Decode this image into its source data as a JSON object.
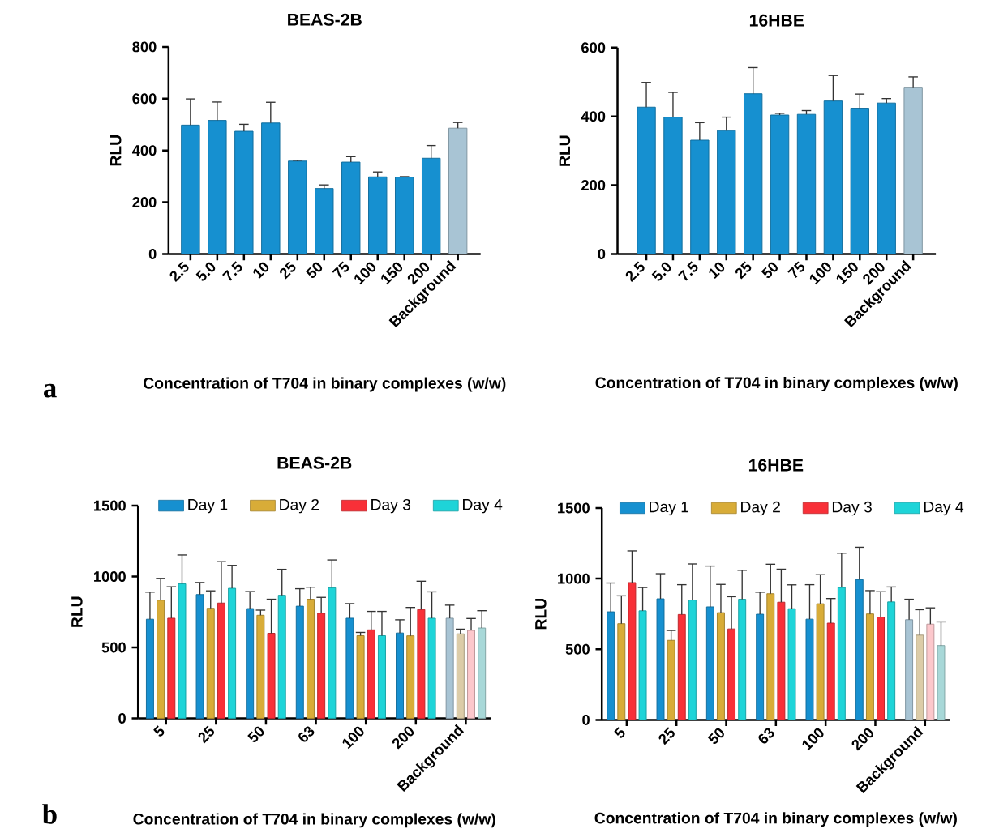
{
  "chart_data": [
    {
      "type": "bar",
      "title": "BEAS-2B",
      "xlabel": "Concentration of T704 in binary complexes (w/w)",
      "ylabel": "RLU",
      "annotations": [
        "a"
      ],
      "categories": [
        "2.5",
        "5.0",
        "7.5",
        "10",
        "25",
        "50",
        "75",
        "100",
        "150",
        "200",
        "Background"
      ],
      "values": [
        498,
        516,
        474,
        506,
        359,
        253,
        355,
        298,
        297,
        370,
        486
      ],
      "errors": [
        101,
        71,
        27,
        80,
        3,
        14,
        21,
        19,
        2,
        49,
        22
      ],
      "colors": [
        "#1690d0",
        "#1690d0",
        "#1690d0",
        "#1690d0",
        "#1690d0",
        "#1690d0",
        "#1690d0",
        "#1690d0",
        "#1690d0",
        "#1690d0",
        "#a8c4d4"
      ],
      "ylim": [
        0,
        800
      ],
      "yticks": [
        0,
        200,
        400,
        600,
        800
      ]
    },
    {
      "type": "bar",
      "title": "16HBE",
      "xlabel": "Concentration of T704 in binary complexes (w/w)",
      "ylabel": "RLU",
      "categories": [
        "2.5",
        "5.0",
        "7.5",
        "10",
        "25",
        "50",
        "75",
        "100",
        "150",
        "200",
        "Background"
      ],
      "values": [
        427,
        398,
        331,
        359,
        466,
        404,
        406,
        445,
        424,
        439,
        485
      ],
      "errors": [
        72,
        72,
        51,
        39,
        76,
        5,
        11,
        74,
        41,
        13,
        30
      ],
      "colors": [
        "#1690d0",
        "#1690d0",
        "#1690d0",
        "#1690d0",
        "#1690d0",
        "#1690d0",
        "#1690d0",
        "#1690d0",
        "#1690d0",
        "#1690d0",
        "#a8c4d4"
      ],
      "ylim": [
        0,
        600
      ],
      "yticks": [
        0,
        200,
        400,
        600
      ]
    },
    {
      "type": "bar",
      "title": "BEAS-2B",
      "xlabel": "Concentration of T704 in binary complexes (w/w)",
      "ylabel": "RLU",
      "annotations": [
        "b"
      ],
      "legend": "top",
      "categories": [
        "5",
        "25",
        "50",
        "63",
        "100",
        "200",
        "Background"
      ],
      "series": [
        {
          "name": "Day 1",
          "color": "#1690d0",
          "colors": [
            "#1690d0",
            "#1690d0",
            "#1690d0",
            "#1690d0",
            "#1690d0",
            "#1690d0",
            "#a8c4d4"
          ],
          "values": [
            699,
            873,
            774,
            791,
            706,
            602,
            706
          ],
          "errors": [
            191,
            85,
            120,
            123,
            103,
            93,
            92
          ]
        },
        {
          "name": "Day 2",
          "color": "#d8ac38",
          "colors": [
            "#d8ac38",
            "#d8ac38",
            "#d8ac38",
            "#d8ac38",
            "#d8ac38",
            "#d8ac38",
            "#dccca8"
          ],
          "values": [
            833,
            776,
            727,
            840,
            583,
            582,
            596
          ],
          "errors": [
            154,
            123,
            36,
            85,
            23,
            200,
            33
          ]
        },
        {
          "name": "Day 3",
          "color": "#f83038",
          "colors": [
            "#f83038",
            "#f83038",
            "#f83038",
            "#f83038",
            "#f83038",
            "#f83038",
            "#fcc8cc"
          ],
          "values": [
            706,
            813,
            600,
            741,
            624,
            767,
            620
          ],
          "errors": [
            222,
            292,
            240,
            112,
            130,
            200,
            84
          ]
        },
        {
          "name": "Day 4",
          "color": "#1ed4d8",
          "colors": [
            "#1ed4d8",
            "#1ed4d8",
            "#1ed4d8",
            "#1ed4d8",
            "#1ed4d8",
            "#1ed4d8",
            "#a8d8d8"
          ],
          "values": [
            949,
            917,
            868,
            921,
            583,
            706,
            637
          ],
          "errors": [
            203,
            162,
            183,
            196,
            171,
            186,
            122
          ]
        }
      ],
      "ylim": [
        0,
        1500
      ],
      "yticks": [
        0,
        500,
        1000,
        1500
      ]
    },
    {
      "type": "bar",
      "title": "16HBE",
      "xlabel": "Concentration of T704 in binary complexes (w/w)",
      "ylabel": "RLU",
      "legend": "top",
      "categories": [
        "5",
        "25",
        "50",
        "63",
        "100",
        "200",
        "Background"
      ],
      "series": [
        {
          "name": "Day 1",
          "color": "#1690d0",
          "colors": [
            "#1690d0",
            "#1690d0",
            "#1690d0",
            "#1690d0",
            "#1690d0",
            "#1690d0",
            "#a8c4d4"
          ],
          "values": [
            765,
            857,
            800,
            748,
            713,
            993,
            709
          ],
          "errors": [
            204,
            178,
            289,
            156,
            244,
            229,
            145
          ]
        },
        {
          "name": "Day 2",
          "color": "#d8ac38",
          "colors": [
            "#d8ac38",
            "#d8ac38",
            "#d8ac38",
            "#d8ac38",
            "#d8ac38",
            "#d8ac38",
            "#dccca8"
          ],
          "values": [
            681,
            563,
            759,
            893,
            822,
            750,
            600
          ],
          "errors": [
            197,
            70,
            200,
            209,
            206,
            165,
            180
          ]
        },
        {
          "name": "Day 3",
          "color": "#f83038",
          "colors": [
            "#f83038",
            "#f83038",
            "#f83038",
            "#f83038",
            "#f83038",
            "#f83038",
            "#fcc8cc"
          ],
          "values": [
            972,
            746,
            644,
            833,
            685,
            728,
            678
          ],
          "errors": [
            224,
            211,
            228,
            234,
            174,
            179,
            115
          ]
        },
        {
          "name": "Day 4",
          "color": "#1ed4d8",
          "colors": [
            "#1ed4d8",
            "#1ed4d8",
            "#1ed4d8",
            "#1ed4d8",
            "#1ed4d8",
            "#1ed4d8",
            "#a8d8d8"
          ],
          "values": [
            772,
            848,
            854,
            787,
            937,
            835,
            526
          ],
          "errors": [
            165,
            256,
            205,
            169,
            243,
            106,
            168
          ]
        }
      ],
      "ylim": [
        0,
        1500
      ],
      "yticks": [
        0,
        500,
        1000,
        1500
      ]
    }
  ]
}
